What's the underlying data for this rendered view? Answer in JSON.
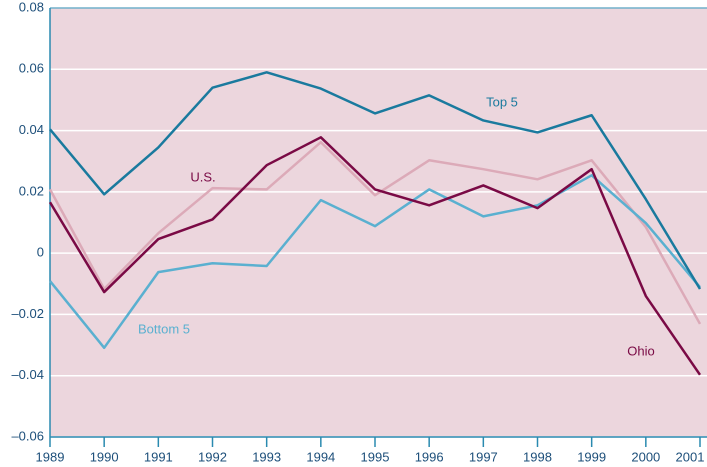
{
  "chart_data": {
    "type": "line",
    "x": [
      1989,
      1990,
      1991,
      1992,
      1993,
      1994,
      1995,
      1996,
      1997,
      1998,
      1999,
      2000,
      2001
    ],
    "xlim": [
      1989,
      2001
    ],
    "xticks": [
      1989,
      1990,
      1991,
      1992,
      1993,
      1994,
      1995,
      1996,
      1997,
      1998,
      1999,
      2000,
      2001
    ],
    "ylim": [
      -0.06,
      0.08
    ],
    "yticks": [
      {
        "value": -0.06,
        "label": "–0.06"
      },
      {
        "value": -0.04,
        "label": "–0.04"
      },
      {
        "value": -0.02,
        "label": "–0.02"
      },
      0,
      0.02,
      0.04,
      0.06,
      0.08
    ],
    "grid": true,
    "series": [
      {
        "name": "Top 5",
        "color": "#1a7a9e",
        "values": [
          0.0404,
          0.0192,
          0.0345,
          0.054,
          0.059,
          0.0537,
          0.0456,
          0.0515,
          0.0433,
          0.0394,
          0.045,
          0.0176,
          -0.0117
        ]
      },
      {
        "name": "U.S.",
        "color": "#dcaab8",
        "values": [
          0.0208,
          -0.0117,
          0.0065,
          0.0212,
          0.0208,
          0.0362,
          0.0189,
          0.0303,
          0.0274,
          0.0241,
          0.0303,
          0.0085,
          -0.0231
        ]
      },
      {
        "name": "Bottom 5",
        "color": "#5ab0d0",
        "values": [
          -0.0091,
          -0.0309,
          -0.0062,
          -0.0033,
          -0.0042,
          0.0173,
          0.0088,
          0.0208,
          0.012,
          0.0156,
          0.0254,
          0.0098,
          -0.0111
        ]
      },
      {
        "name": "Ohio",
        "color": "#7a0a45",
        "values": [
          0.0166,
          -0.0127,
          0.0046,
          0.011,
          0.0287,
          0.0378,
          0.0208,
          0.0156,
          0.0221,
          0.0147,
          0.0274,
          -0.014,
          -0.0397
        ]
      }
    ]
  }
}
